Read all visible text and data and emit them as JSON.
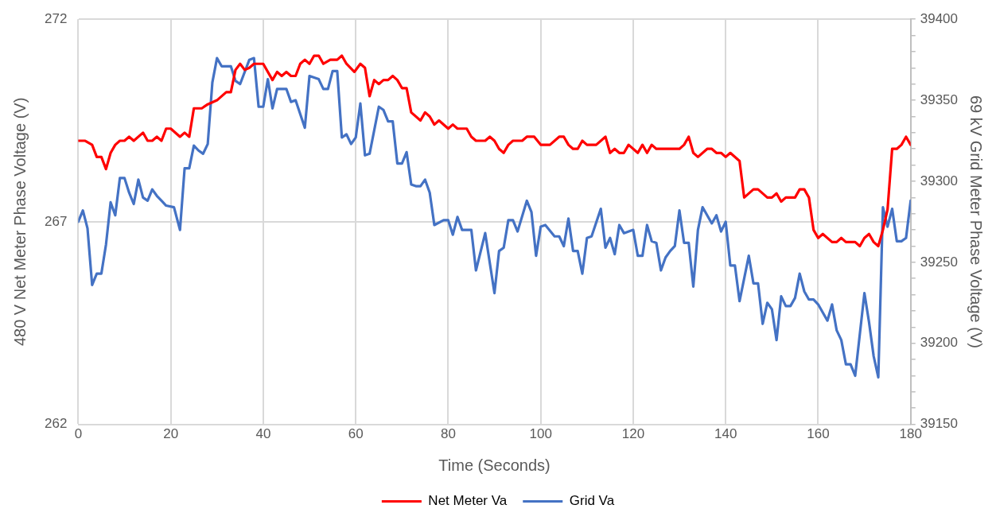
{
  "chart_data": {
    "type": "line",
    "xlabel": "Time (Seconds)",
    "ylabel": "480 V Net Meter Phase Voltage (V)",
    "y2label": "69 kV Grid Meter Phase Voltage (V)",
    "xlim": [
      0,
      180
    ],
    "xticks": [
      0,
      20,
      40,
      60,
      80,
      100,
      120,
      140,
      160,
      180
    ],
    "ylim": [
      262,
      272
    ],
    "yticks": [
      262,
      267,
      272
    ],
    "y2lim": [
      39150,
      39400
    ],
    "y2ticks": [
      39150,
      {
        "value": 39160,
        "label": null
      },
      {
        "value": 39170,
        "label": null
      },
      {
        "value": 39180,
        "label": null
      },
      {
        "value": 39190,
        "label": null
      },
      39200,
      {
        "value": 39210,
        "label": null
      },
      {
        "value": 39220,
        "label": null
      },
      {
        "value": 39230,
        "label": null
      },
      {
        "value": 39240,
        "label": null
      },
      39250,
      {
        "value": 39260,
        "label": null
      },
      {
        "value": 39270,
        "label": null
      },
      {
        "value": 39280,
        "label": null
      },
      {
        "value": 39290,
        "label": null
      },
      39300,
      {
        "value": 39310,
        "label": null
      },
      {
        "value": 39320,
        "label": null
      },
      {
        "value": 39330,
        "label": null
      },
      {
        "value": 39340,
        "label": null
      },
      39350,
      {
        "value": 39360,
        "label": null
      },
      {
        "value": 39370,
        "label": null
      },
      {
        "value": 39380,
        "label": null
      },
      {
        "value": 39390,
        "label": null
      },
      39400
    ],
    "grid": true,
    "legend": "bottom",
    "marker": "none",
    "line_style": "solid",
    "series": [
      {
        "name": "Net Meter Va",
        "color": "#ff0000",
        "x": [
          0,
          1.5,
          3,
          4,
          5,
          6,
          7,
          8,
          9,
          10,
          11,
          12,
          14,
          15,
          16,
          17,
          18,
          19,
          20,
          22,
          23,
          24,
          25,
          26.7,
          28,
          30,
          32,
          33,
          34,
          35,
          36,
          37,
          38,
          40,
          42,
          43,
          44,
          45,
          46,
          47,
          48,
          49,
          50,
          51,
          52,
          53,
          54.5,
          56,
          57,
          58,
          59.7,
          61,
          62,
          63,
          64,
          65,
          66,
          67,
          68,
          69,
          70,
          71,
          72,
          74,
          75,
          76,
          77,
          78,
          80,
          81,
          82,
          84,
          85,
          86,
          88,
          89,
          90,
          91,
          92,
          93,
          94,
          96,
          97,
          98.6,
          100,
          102,
          104,
          105,
          106,
          107,
          108,
          109,
          110,
          112,
          114,
          115,
          116,
          117,
          118,
          119,
          121,
          122,
          123,
          124,
          125,
          130,
          131,
          132,
          133,
          134,
          136,
          137,
          138,
          139,
          140,
          141,
          143,
          144,
          146,
          147,
          149,
          150,
          151,
          152,
          153,
          155,
          156,
          157,
          158,
          159,
          160,
          161,
          163,
          164,
          165,
          166,
          168,
          169,
          170,
          171,
          172,
          173,
          174,
          175,
          176,
          177,
          178,
          179,
          180
        ],
        "values": [
          269.0,
          269.0,
          268.9,
          268.6,
          268.6,
          268.3,
          268.7,
          268.9,
          269.0,
          269.0,
          269.1,
          269.0,
          269.2,
          269.0,
          269.0,
          269.1,
          269.0,
          269.3,
          269.3,
          269.1,
          269.2,
          269.1,
          269.8,
          269.8,
          269.9,
          270.0,
          270.2,
          270.2,
          270.75,
          270.9,
          270.75,
          270.8,
          270.9,
          270.9,
          270.5,
          270.7,
          270.6,
          270.7,
          270.6,
          270.6,
          270.9,
          271.0,
          270.9,
          271.1,
          271.1,
          270.9,
          271.0,
          271.0,
          271.1,
          270.9,
          270.7,
          270.9,
          270.8,
          270.1,
          270.5,
          270.4,
          270.5,
          270.5,
          270.6,
          270.5,
          270.3,
          270.3,
          269.7,
          269.5,
          269.7,
          269.6,
          269.4,
          269.5,
          269.3,
          269.4,
          269.3,
          269.3,
          269.1,
          269.0,
          269.0,
          269.1,
          269.0,
          268.8,
          268.7,
          268.9,
          269.0,
          269.0,
          269.1,
          269.1,
          268.9,
          268.9,
          269.1,
          269.1,
          268.9,
          268.8,
          268.8,
          269.0,
          268.9,
          268.9,
          269.1,
          268.7,
          268.8,
          268.7,
          268.7,
          268.9,
          268.7,
          268.9,
          268.7,
          268.9,
          268.8,
          268.8,
          268.9,
          269.1,
          268.7,
          268.6,
          268.8,
          268.8,
          268.7,
          268.7,
          268.6,
          268.7,
          268.5,
          267.6,
          267.8,
          267.8,
          267.6,
          267.6,
          267.7,
          267.5,
          267.6,
          267.6,
          267.8,
          267.8,
          267.6,
          266.8,
          266.6,
          266.7,
          266.5,
          266.5,
          266.6,
          266.5,
          266.5,
          266.4,
          266.6,
          266.7,
          266.5,
          266.4,
          266.8,
          267.3,
          268.8,
          268.8,
          268.9,
          269.1,
          268.9
        ]
      },
      {
        "name": "Grid Va",
        "color": "#4472c4",
        "axis": "y2",
        "x": [
          0,
          1,
          2,
          3,
          4,
          5,
          6,
          7,
          8,
          9,
          10,
          11,
          12,
          13,
          14,
          15,
          16,
          17,
          18,
          19,
          20.7,
          22,
          23,
          24,
          25,
          26,
          27,
          28,
          29,
          30,
          31,
          33,
          34,
          35,
          37,
          38,
          39,
          40,
          41,
          42,
          43,
          45,
          46,
          47,
          49,
          50,
          52,
          53,
          54,
          55,
          56,
          57,
          58,
          59,
          60,
          61,
          62,
          63,
          65,
          66,
          67,
          68,
          69,
          70,
          71,
          72,
          73,
          74,
          75,
          76,
          77,
          79,
          80,
          81,
          82,
          83,
          85,
          86,
          88,
          90,
          91,
          92,
          93,
          94,
          95,
          97,
          98,
          99,
          100,
          101,
          103,
          104,
          105,
          106,
          107,
          108,
          109,
          110,
          111,
          113,
          114,
          115,
          116,
          117,
          118,
          120,
          121,
          122,
          123,
          124,
          125,
          126,
          127,
          128,
          129,
          130,
          131,
          132,
          133,
          134,
          135,
          136,
          137,
          138,
          139,
          140,
          141,
          142,
          143,
          145,
          146,
          147,
          148,
          149,
          150,
          151,
          152,
          153,
          154,
          155,
          156,
          157,
          158,
          159,
          160,
          162,
          163,
          164,
          165,
          166,
          167,
          168,
          170,
          171,
          172,
          173,
          174,
          175,
          176,
          177,
          178,
          179,
          180
        ],
        "values": [
          39275,
          39282,
          39271,
          39236,
          39243,
          39243,
          39261,
          39287,
          39279,
          39302,
          39302,
          39293,
          39286,
          39301,
          39290,
          39288,
          39295,
          39291,
          39288,
          39285,
          39284,
          39270,
          39308,
          39308,
          39322,
          39319,
          39317,
          39323,
          39361,
          39376,
          39371,
          39371,
          39362,
          39360,
          39375,
          39376,
          39346,
          39346,
          39363,
          39345,
          39357,
          39357,
          39349,
          39350,
          39333,
          39365,
          39363,
          39357,
          39357,
          39368,
          39368,
          39327,
          39329,
          39323,
          39327,
          39348,
          39316,
          39317,
          39346,
          39344,
          39337,
          39337,
          39311,
          39311,
          39318,
          39298,
          39297,
          39297,
          39301,
          39293,
          39273,
          39276,
          39276,
          39267,
          39278,
          39270,
          39270,
          39245,
          39268,
          39231,
          39257,
          39259,
          39276,
          39276,
          39269,
          39288,
          39281,
          39254,
          39272,
          39273,
          39266,
          39266,
          39260,
          39277,
          39257,
          39257,
          39243,
          39265,
          39266,
          39283,
          39259,
          39265,
          39255,
          39273,
          39268,
          39270,
          39254,
          39254,
          39273,
          39263,
          39262,
          39245,
          39253,
          39257,
          39260,
          39282,
          39262,
          39262,
          39235,
          39270,
          39284,
          39279,
          39274,
          39279,
          39269,
          39275,
          39248,
          39248,
          39226,
          39254,
          39237,
          39237,
          39212,
          39225,
          39221,
          39202,
          39229,
          39223,
          39223,
          39228,
          39243,
          39232,
          39227,
          39227,
          39224,
          39214,
          39224,
          39208,
          39202,
          39187,
          39187,
          39180,
          39231,
          39213,
          39192,
          39179,
          39284,
          39272,
          39283,
          39263,
          39263,
          39265,
          39288
        ]
      }
    ]
  }
}
